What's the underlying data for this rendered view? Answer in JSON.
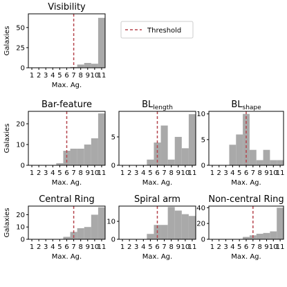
{
  "chart_data": [
    {
      "type": "bar",
      "title": "Visibility",
      "xlabel": "Max. Ag.",
      "ylabel": "Galaxies",
      "categories": [
        1,
        2,
        3,
        4,
        5,
        6,
        7,
        8,
        9,
        10,
        11
      ],
      "values": [
        0,
        0,
        0,
        0,
        0,
        0,
        1,
        4,
        6,
        5,
        62
      ],
      "yticks": [
        0,
        25,
        50
      ],
      "ylim": [
        0,
        67
      ],
      "threshold": 7,
      "grid": false
    },
    {
      "type": "bar",
      "title": "Bar-feature",
      "xlabel": "Max. Ag.",
      "ylabel": "Galaxies",
      "categories": [
        1,
        2,
        3,
        4,
        5,
        6,
        7,
        8,
        9,
        10,
        11
      ],
      "values": [
        0,
        0,
        0,
        0,
        1,
        7,
        8,
        8,
        10,
        13,
        25
      ],
      "yticks": [
        0,
        10,
        20
      ],
      "ylim": [
        0,
        26
      ],
      "threshold": 6,
      "grid": false
    },
    {
      "type": "bar",
      "title": "BL",
      "title_sub": "length",
      "xlabel": "Max. Ag.",
      "ylabel": "",
      "categories": [
        1,
        2,
        3,
        4,
        5,
        6,
        7,
        8,
        9,
        10,
        11
      ],
      "values": [
        0,
        0,
        0,
        0,
        1,
        4,
        7,
        1,
        5,
        3,
        9
      ],
      "yticks": [
        0,
        5
      ],
      "ylim": [
        0,
        9.5
      ],
      "threshold": 6,
      "grid": false
    },
    {
      "type": "bar",
      "title": "BL",
      "title_sub": "shape",
      "xlabel": "Max. Ag.",
      "ylabel": "",
      "categories": [
        1,
        2,
        3,
        4,
        5,
        6,
        7,
        8,
        9,
        10,
        11
      ],
      "values": [
        0,
        0,
        0,
        4,
        6,
        10,
        3,
        1,
        3,
        1,
        1
      ],
      "yticks": [
        0,
        5,
        10
      ],
      "ylim": [
        0,
        10.5
      ],
      "threshold": 6,
      "grid": false
    },
    {
      "type": "bar",
      "title": "Central Ring",
      "xlabel": "Max. Ag.",
      "ylabel": "Galaxies",
      "categories": [
        1,
        2,
        3,
        4,
        5,
        6,
        7,
        8,
        9,
        10,
        11
      ],
      "values": [
        0,
        0,
        0,
        0,
        0,
        2,
        6,
        9,
        10,
        20,
        26
      ],
      "yticks": [
        0,
        10,
        20
      ],
      "ylim": [
        0,
        27
      ],
      "threshold": 7,
      "grid": false
    },
    {
      "type": "bar",
      "title": "Spiral arm",
      "xlabel": "Max. Ag.",
      "ylabel": "",
      "categories": [
        1,
        2,
        3,
        4,
        5,
        6,
        7,
        8,
        9,
        10,
        11
      ],
      "values": [
        0,
        0,
        0,
        0,
        3,
        8,
        8,
        18,
        16,
        14,
        13
      ],
      "yticks": [
        0,
        10
      ],
      "ylim": [
        0,
        18.5
      ],
      "threshold": 6,
      "grid": false
    },
    {
      "type": "bar",
      "title": "Non-central Ring",
      "xlabel": "Max. Ag.",
      "ylabel": "",
      "categories": [
        1,
        2,
        3,
        4,
        5,
        6,
        7,
        8,
        9,
        10,
        11
      ],
      "values": [
        0,
        0,
        0,
        0,
        0,
        3,
        5,
        7,
        8,
        10,
        40
      ],
      "yticks": [
        0,
        20,
        40
      ],
      "ylim": [
        0,
        42
      ],
      "threshold": 7,
      "grid": false
    }
  ],
  "legend": {
    "label": "Threshold",
    "placement": "top-center"
  },
  "colors": {
    "bar": "#a9a9a9",
    "threshold": "#b5444c",
    "axis": "#000000"
  }
}
